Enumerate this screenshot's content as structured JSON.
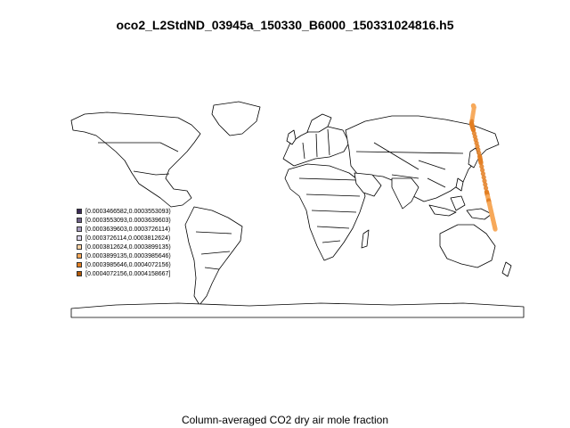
{
  "title": "oco2_L2StdND_03945a_150330_B6000_150331024816.h5",
  "subtitle": "Column-averaged CO2 dry air mole fraction",
  "map": {
    "projection": "equirectangular",
    "land_fill": "#ffffff",
    "border_color": "#000000"
  },
  "legend": {
    "items": [
      {
        "label": "[0.0003466582,0.0003553093)",
        "color": "#3b2a57"
      },
      {
        "label": "[0.0003553093,0.0003639603)",
        "color": "#6e6088"
      },
      {
        "label": "[0.0003639603,0.0003726114)",
        "color": "#a89cc0"
      },
      {
        "label": "[0.0003726114,0.0003812624)",
        "color": "#ddd6ea"
      },
      {
        "label": "[0.0003812624,0.0003899135)",
        "color": "#fbd3a5"
      },
      {
        "label": "[0.0003899135,0.0003985646)",
        "color": "#f7a95a"
      },
      {
        "label": "[0.0003985646,0.0004072156)",
        "color": "#e37f23"
      },
      {
        "label": "[0.0004072156,0.0004158667]",
        "color": "#b35806"
      }
    ]
  },
  "chart_data": {
    "type": "scatter",
    "title": "oco2_L2StdND_03945a_150330_B6000_150331024816.h5",
    "xlabel": "Column-averaged CO2 dry air mole fraction",
    "ylabel": "",
    "xlim": [
      -180,
      180
    ],
    "ylim": [
      -90,
      90
    ],
    "track": [
      {
        "lon": 139.9,
        "lat": 65.0,
        "value": 0.000394
      },
      {
        "lon": 140.5,
        "lat": 63.5,
        "value": 0.000392
      },
      {
        "lon": 138.5,
        "lat": 52.0,
        "value": 0.0004
      },
      {
        "lon": 139.0,
        "lat": 50.0,
        "value": 0.000405
      },
      {
        "lon": 140.0,
        "lat": 47.0,
        "value": 0.000403
      },
      {
        "lon": 145.0,
        "lat": 28.0,
        "value": 0.000401
      },
      {
        "lon": 146.0,
        "lat": 23.0,
        "value": 0.000399
      },
      {
        "lon": 150.5,
        "lat": 2.0,
        "value": 0.000401
      },
      {
        "lon": 151.5,
        "lat": -2.0,
        "value": 0.000398
      },
      {
        "lon": 152.5,
        "lat": -6.0,
        "value": 0.000399
      },
      {
        "lon": 153.5,
        "lat": -10.0,
        "value": 0.000394
      },
      {
        "lon": 154.5,
        "lat": -14.0,
        "value": 0.000391
      },
      {
        "lon": 155.5,
        "lat": -18.0,
        "value": 0.000393
      },
      {
        "lon": 156.5,
        "lat": -22.0,
        "value": 0.000395
      },
      {
        "lon": 157.5,
        "lat": -26.0,
        "value": 0.000396
      }
    ]
  }
}
